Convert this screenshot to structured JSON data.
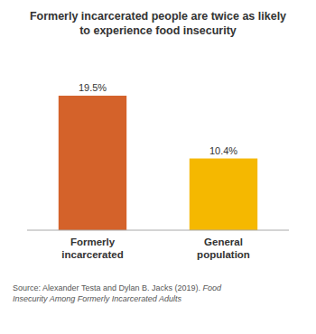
{
  "chart_data": {
    "type": "bar",
    "title": "Formerly incarcerated people are twice as likely\nto experience food insecurity",
    "categories": [
      "Formerly\nincarcerated",
      "General\npopulation"
    ],
    "values": [
      19.5,
      10.4
    ],
    "value_labels": [
      "19.5%",
      "10.4%"
    ],
    "colors": [
      "#D4622A",
      "#F5B800"
    ],
    "ylim": [
      0,
      25
    ],
    "data_labels": true,
    "tick_labels": "x",
    "grid": false,
    "annotations": [
      "Source: Alexander Testa and Dylan B. Jacks (2019). ",
      "Food\nInsecurity Among Formerly Incarcerated Adults"
    ]
  }
}
